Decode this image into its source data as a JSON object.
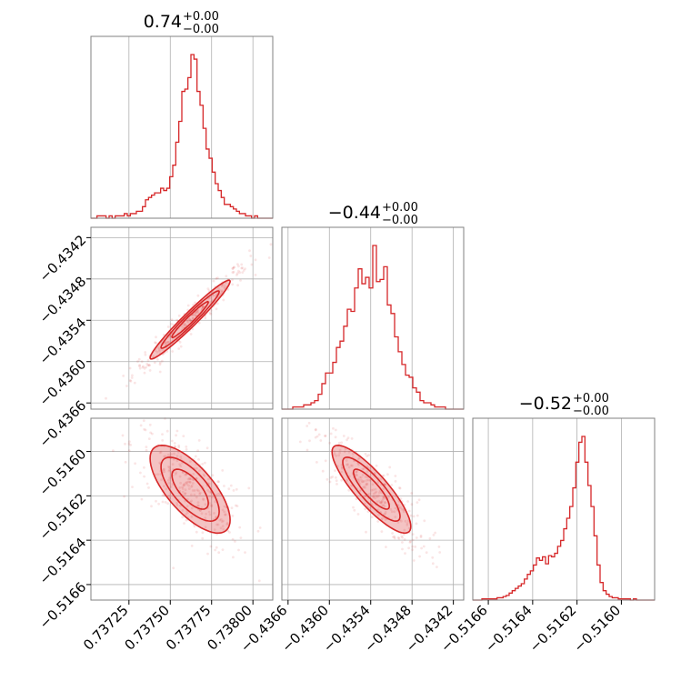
{
  "colors": {
    "series": "#d62728",
    "grid": "#b0b0b0",
    "frame": "#808080"
  },
  "chart_data": {
    "type": "corner",
    "grid": true,
    "parameters": [
      {
        "title_value": "0.74",
        "title_plus": "+0.00",
        "title_minus": "−0.00",
        "range": [
          0.73702,
          0.73812
        ],
        "ticks": [
          0.73725,
          0.7375,
          0.73775,
          0.738
        ],
        "tick_labels": [
          "0.73725",
          "0.73750",
          "0.73775",
          "0.73800"
        ],
        "hist_center": 0.73762,
        "hist_sigma": 0.00011,
        "hist_bins": 60,
        "hist_weights": [
          0,
          0,
          1,
          1,
          1,
          0,
          1,
          0,
          1,
          1,
          1,
          2,
          1,
          2,
          2,
          3,
          3,
          5,
          8,
          9,
          10,
          11,
          11,
          13,
          12,
          13,
          18,
          23,
          33,
          42,
          55,
          56,
          61,
          71,
          69,
          55,
          49,
          39,
          30,
          26,
          20,
          15,
          12,
          9,
          6,
          6,
          5,
          4,
          3,
          2,
          2,
          1,
          1,
          0,
          1,
          0,
          0,
          0,
          0,
          0
        ]
      },
      {
        "title_value": "−0.44",
        "title_plus": "+0.00",
        "title_minus": "−0.00",
        "range": [
          -0.43669,
          -0.43405
        ],
        "ticks": [
          -0.4366,
          -0.436,
          -0.4354,
          -0.4348,
          -0.4342
        ],
        "tick_labels": [
          "−0.4366",
          "−0.4360",
          "−0.4354",
          "−0.4348",
          "−0.4342"
        ],
        "hist_center": -0.43539,
        "hist_sigma": 0.00026,
        "hist_bins": 50,
        "hist_weights": [
          0,
          0,
          0,
          1,
          1,
          1,
          2,
          2,
          3,
          4,
          7,
          12,
          17,
          17,
          22,
          29,
          32,
          39,
          47,
          46,
          57,
          66,
          59,
          62,
          57,
          77,
          60,
          61,
          67,
          49,
          45,
          34,
          27,
          21,
          16,
          15,
          10,
          8,
          4,
          3,
          3,
          2,
          1,
          1,
          1,
          0,
          0,
          0,
          0,
          0
        ]
      },
      {
        "title_value": "−0.52",
        "title_plus": "+0.00",
        "title_minus": "−0.00",
        "range": [
          -0.51667,
          -0.51585
        ],
        "ticks": [
          -0.5166,
          -0.5164,
          -0.5162,
          -0.516
        ],
        "tick_labels": [
          "−0.5166",
          "−0.5164",
          "−0.5162",
          "−0.5160"
        ],
        "hist_center": -0.51617,
        "hist_sigma": 9e-05,
        "hist_bins": 60,
        "hist_weights": [
          0,
          0,
          0,
          1,
          1,
          1,
          1,
          1,
          2,
          2,
          3,
          4,
          6,
          8,
          10,
          12,
          14,
          18,
          22,
          25,
          30,
          36,
          34,
          37,
          31,
          38,
          37,
          40,
          46,
          51,
          61,
          70,
          80,
          96,
          118,
          135,
          140,
          118,
          98,
          80,
          55,
          30,
          15,
          8,
          5,
          3,
          2,
          2,
          1,
          1,
          1,
          1,
          0,
          1,
          0,
          0,
          0,
          0,
          0,
          0
        ]
      }
    ]
  }
}
